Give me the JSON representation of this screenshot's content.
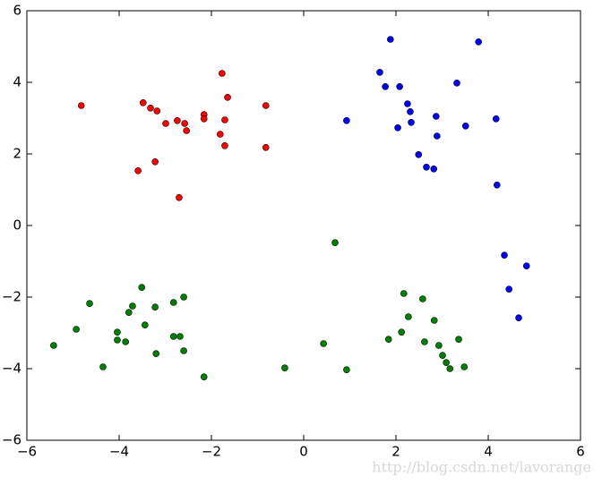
{
  "chart_data": {
    "type": "scatter",
    "watermark": "http://blog.csdn.net/lavorange",
    "xlim": [
      -6,
      6
    ],
    "ylim": [
      -6,
      6
    ],
    "xticks": [
      {
        "value": -6,
        "label": "−6"
      },
      {
        "value": -4,
        "label": "−4"
      },
      {
        "value": -2,
        "label": "−2"
      },
      0,
      2,
      4,
      6
    ],
    "yticks": [
      {
        "value": -6,
        "label": "−6"
      },
      {
        "value": -4,
        "label": "−4"
      },
      {
        "value": -2,
        "label": "−2"
      },
      0,
      2,
      4,
      6
    ],
    "grid": false,
    "series": [
      {
        "color": "#ff0000",
        "x": [
          -4.82,
          -3.48,
          -3.32,
          -3.18,
          -2.99,
          -2.74,
          -2.58,
          -2.54,
          -2.16,
          -2.16,
          -1.77,
          -1.65,
          -1.71,
          -1.81,
          -1.71,
          -0.82,
          -0.82,
          -3.59,
          -3.22,
          -2.7
        ],
        "y": [
          3.35,
          3.43,
          3.28,
          3.2,
          2.85,
          2.93,
          2.85,
          2.65,
          3.1,
          2.98,
          4.25,
          3.58,
          2.95,
          2.55,
          2.23,
          3.35,
          2.18,
          1.53,
          1.78,
          0.78
        ]
      },
      {
        "color": "#0000ff",
        "x": [
          1.88,
          3.79,
          1.65,
          1.77,
          2.08,
          3.32,
          2.25,
          2.31,
          2.33,
          2.04,
          2.87,
          2.89,
          3.51,
          4.17,
          0.93,
          2.49,
          2.66,
          2.82,
          4.19,
          4.35,
          4.45,
          4.83,
          4.66
        ],
        "y": [
          5.2,
          5.13,
          4.28,
          3.88,
          3.88,
          3.98,
          3.4,
          3.18,
          2.88,
          2.73,
          3.05,
          2.5,
          2.78,
          2.98,
          2.93,
          1.98,
          1.63,
          1.58,
          1.13,
          -0.83,
          -1.78,
          -1.13,
          -2.58
        ]
      },
      {
        "color": "#008000",
        "x": [
          0.68,
          -5.42,
          -4.93,
          -4.64,
          -3.51,
          -3.71,
          -3.79,
          -4.04,
          -4.04,
          -3.86,
          -3.44,
          -3.22,
          -2.6,
          -2.82,
          -3.2,
          -2.82,
          -2.68,
          -2.6,
          -4.35,
          -2.16,
          -0.41,
          0.43,
          0.93,
          2.17,
          2.58,
          2.27,
          2.83,
          2.12,
          1.84,
          2.62,
          2.93,
          3.36,
          3.01,
          3.09,
          3.17,
          3.48
        ],
        "y": [
          -0.48,
          -3.35,
          -2.9,
          -2.18,
          -1.73,
          -2.25,
          -2.43,
          -2.98,
          -3.2,
          -3.25,
          -2.78,
          -2.28,
          -2.0,
          -2.15,
          -3.58,
          -3.1,
          -3.1,
          -3.5,
          -3.95,
          -4.23,
          -3.98,
          -3.3,
          -4.03,
          -1.9,
          -2.05,
          -2.55,
          -2.65,
          -2.98,
          -3.18,
          -3.25,
          -3.35,
          -3.18,
          -3.63,
          -3.83,
          -4.0,
          -3.95
        ]
      }
    ]
  }
}
